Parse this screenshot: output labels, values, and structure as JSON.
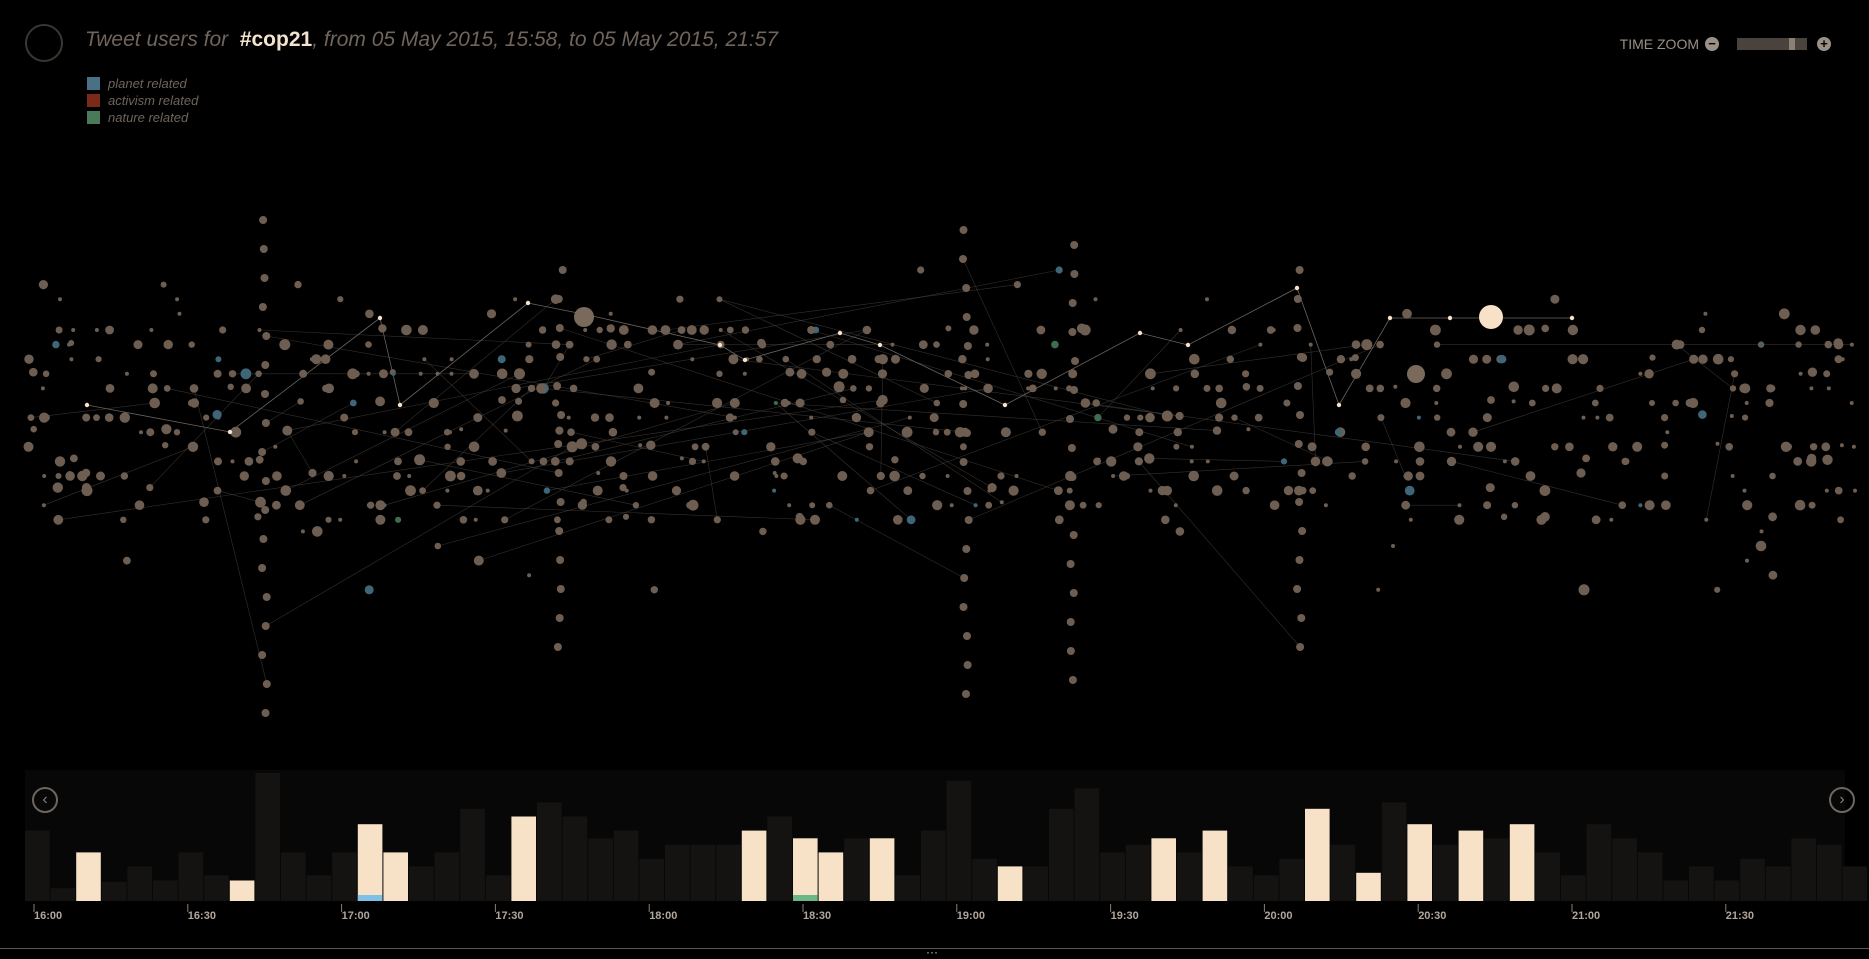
{
  "header": {
    "title_prefix": "Tweet users for",
    "hashtag": "#cop21",
    "title_suffix": ", from 05 May 2015, 15:58, to 05 May 2015, 21:57"
  },
  "legend": [
    {
      "label": "planet related",
      "color": "#4a7088"
    },
    {
      "label": "activism related",
      "color": "#7a2a18"
    },
    {
      "label": "nature related",
      "color": "#4a7a5a"
    }
  ],
  "zoom": {
    "label": "TIME ZOOM",
    "minus_icon": "minus-circle-icon",
    "plus_icon": "plus-circle-icon"
  },
  "colors": {
    "node": "#6e5e52",
    "highlight": "#f7e2c8",
    "planet": "#3e6678",
    "nature": "#3e6e50",
    "edge": "#4a4642",
    "bar_dim": "#141312",
    "bar_hi": "#f7e2c8",
    "bar_blue": "#7ec0e6",
    "bar_green": "#6ab888"
  },
  "timeline": {
    "tick_labels": [
      "16:00",
      "16:30",
      "17:00",
      "17:30",
      "18:00",
      "18:30",
      "19:00",
      "19:30",
      "20:00",
      "20:30",
      "21:00",
      "21:30"
    ],
    "prev_icon": "chevron-left-icon",
    "next_icon": "chevron-right-icon",
    "bars": [
      {
        "v": 0.55,
        "h": false
      },
      {
        "v": 0.1,
        "h": false
      },
      {
        "v": 0.38,
        "h": true
      },
      {
        "v": 0.15,
        "h": false
      },
      {
        "v": 0.27,
        "h": false
      },
      {
        "v": 0.16,
        "h": false
      },
      {
        "v": 0.38,
        "h": false
      },
      {
        "v": 0.2,
        "h": false
      },
      {
        "v": 0.16,
        "h": true
      },
      {
        "v": 1.0,
        "h": false
      },
      {
        "v": 0.38,
        "h": false
      },
      {
        "v": 0.2,
        "h": false
      },
      {
        "v": 0.38,
        "h": false
      },
      {
        "v": 0.6,
        "h": true,
        "b": "blue"
      },
      {
        "v": 0.38,
        "h": true
      },
      {
        "v": 0.27,
        "h": false
      },
      {
        "v": 0.38,
        "h": false
      },
      {
        "v": 0.72,
        "h": false
      },
      {
        "v": 0.2,
        "h": false
      },
      {
        "v": 0.66,
        "h": true
      },
      {
        "v": 0.77,
        "h": false
      },
      {
        "v": 0.66,
        "h": false
      },
      {
        "v": 0.49,
        "h": false
      },
      {
        "v": 0.55,
        "h": false
      },
      {
        "v": 0.33,
        "h": false
      },
      {
        "v": 0.44,
        "h": false
      },
      {
        "v": 0.44,
        "h": false
      },
      {
        "v": 0.44,
        "h": false
      },
      {
        "v": 0.55,
        "h": true
      },
      {
        "v": 0.66,
        "h": false
      },
      {
        "v": 0.49,
        "h": true,
        "b": "green"
      },
      {
        "v": 0.38,
        "h": true
      },
      {
        "v": 0.49,
        "h": false
      },
      {
        "v": 0.49,
        "h": true
      },
      {
        "v": 0.2,
        "h": false
      },
      {
        "v": 0.55,
        "h": false
      },
      {
        "v": 0.94,
        "h": false
      },
      {
        "v": 0.33,
        "h": false
      },
      {
        "v": 0.27,
        "h": true
      },
      {
        "v": 0.27,
        "h": false
      },
      {
        "v": 0.72,
        "h": false
      },
      {
        "v": 0.88,
        "h": false
      },
      {
        "v": 0.38,
        "h": false
      },
      {
        "v": 0.44,
        "h": false
      },
      {
        "v": 0.49,
        "h": true
      },
      {
        "v": 0.38,
        "h": false
      },
      {
        "v": 0.55,
        "h": true
      },
      {
        "v": 0.27,
        "h": false
      },
      {
        "v": 0.2,
        "h": false
      },
      {
        "v": 0.33,
        "h": false
      },
      {
        "v": 0.72,
        "h": true
      },
      {
        "v": 0.44,
        "h": false
      },
      {
        "v": 0.22,
        "h": true
      },
      {
        "v": 0.77,
        "h": false
      },
      {
        "v": 0.6,
        "h": true
      },
      {
        "v": 0.44,
        "h": false
      },
      {
        "v": 0.55,
        "h": true
      },
      {
        "v": 0.49,
        "h": false
      },
      {
        "v": 0.6,
        "h": true
      },
      {
        "v": 0.38,
        "h": false
      },
      {
        "v": 0.2,
        "h": false
      },
      {
        "v": 0.6,
        "h": false
      },
      {
        "v": 0.49,
        "h": false
      },
      {
        "v": 0.38,
        "h": false
      },
      {
        "v": 0.16,
        "h": false
      },
      {
        "v": 0.27,
        "h": false
      },
      {
        "v": 0.16,
        "h": false
      },
      {
        "v": 0.33,
        "h": false
      },
      {
        "v": 0.27,
        "h": false
      },
      {
        "v": 0.49,
        "h": false
      },
      {
        "v": 0.44,
        "h": false
      },
      {
        "v": 0.27,
        "h": false
      }
    ]
  }
}
